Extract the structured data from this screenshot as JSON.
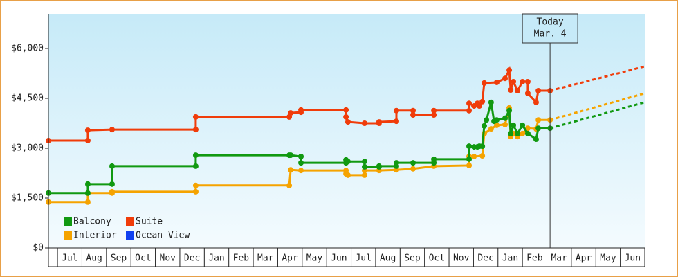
{
  "chart_data": {
    "type": "line",
    "xlim": [
      -0.37,
      24
    ],
    "ylim": [
      0,
      7000
    ],
    "xticks": [
      {
        "value": 0.5,
        "label": "Jul"
      },
      {
        "value": 1.5,
        "label": "Aug"
      },
      {
        "value": 2.5,
        "label": "Sep"
      },
      {
        "value": 3.5,
        "label": "Oct"
      },
      {
        "value": 4.5,
        "label": "Nov"
      },
      {
        "value": 5.5,
        "label": "Dec"
      },
      {
        "value": 6.5,
        "label": "Jan"
      },
      {
        "value": 7.5,
        "label": "Feb"
      },
      {
        "value": 8.5,
        "label": "Mar"
      },
      {
        "value": 9.5,
        "label": "Apr"
      },
      {
        "value": 10.5,
        "label": "May"
      },
      {
        "value": 11.5,
        "label": "Jun"
      },
      {
        "value": 12.5,
        "label": "Jul"
      },
      {
        "value": 13.5,
        "label": "Aug"
      },
      {
        "value": 14.5,
        "label": "Sep"
      },
      {
        "value": 15.5,
        "label": "Oct"
      },
      {
        "value": 16.5,
        "label": "Nov"
      },
      {
        "value": 17.5,
        "label": "Dec"
      },
      {
        "value": 18.5,
        "label": "Jan"
      },
      {
        "value": 19.5,
        "label": "Feb"
      },
      {
        "value": 20.5,
        "label": "Mar"
      },
      {
        "value": 21.5,
        "label": "Apr"
      },
      {
        "value": 22.5,
        "label": "May"
      },
      {
        "value": 23.5,
        "label": "Jun"
      }
    ],
    "yticks": [
      {
        "value": 0,
        "label": "$0"
      },
      {
        "value": 1500,
        "label": "$1,500"
      },
      {
        "value": 3000,
        "label": "$3,000"
      },
      {
        "value": 4500,
        "label": "$4,500"
      },
      {
        "value": 6000,
        "label": "$6,000"
      }
    ],
    "today": {
      "x": 20.13,
      "label": [
        "Today",
        "Mar. 4"
      ]
    },
    "legend": "lower-left",
    "series": [
      {
        "name": "Interior",
        "color": "#f5a300",
        "x": [
          -0.37,
          1.24,
          1.24,
          2.23,
          2.23,
          5.65,
          5.65,
          9.47,
          9.53,
          9.95,
          11.79,
          11.79,
          11.87,
          12.55,
          12.55,
          13.14,
          13.85,
          14.53,
          15.38,
          16.82,
          16.82,
          17.02,
          17.36,
          17.44,
          17.72,
          17.95,
          18.29,
          18.46,
          18.52,
          18.63,
          18.8,
          19.0,
          19.22,
          19.56,
          19.65,
          20.13
        ],
        "values": [
          1380,
          1380,
          1650,
          1650,
          1690,
          1690,
          1880,
          1880,
          2350,
          2330,
          2330,
          2230,
          2190,
          2190,
          2330,
          2330,
          2350,
          2380,
          2460,
          2480,
          2750,
          2750,
          2770,
          3440,
          3580,
          3690,
          3710,
          4210,
          3350,
          3440,
          3350,
          3440,
          3600,
          3580,
          3850,
          3850
        ],
        "forecast": 4650
      },
      {
        "name": "Balcony",
        "color": "#119911",
        "x": [
          -0.37,
          1.24,
          1.24,
          2.23,
          2.23,
          5.65,
          5.65,
          9.47,
          9.53,
          9.95,
          9.95,
          11.79,
          11.79,
          11.87,
          12.55,
          12.55,
          13.14,
          13.14,
          13.85,
          13.85,
          14.53,
          15.38,
          15.38,
          16.82,
          16.82,
          17.02,
          17.16,
          17.24,
          17.36,
          17.44,
          17.53,
          17.72,
          17.84,
          17.95,
          18.29,
          18.46,
          18.52,
          18.63,
          18.8,
          19.0,
          19.22,
          19.56,
          19.65,
          20.13
        ],
        "values": [
          1650,
          1650,
          1920,
          1920,
          2460,
          2460,
          2790,
          2790,
          2790,
          2750,
          2560,
          2560,
          2650,
          2600,
          2600,
          2440,
          2440,
          2460,
          2460,
          2560,
          2560,
          2560,
          2670,
          2670,
          3060,
          3040,
          3040,
          3060,
          3060,
          3670,
          3850,
          4380,
          3810,
          3850,
          3900,
          4130,
          3440,
          3690,
          3440,
          3690,
          3440,
          3270,
          3600,
          3600
        ],
        "forecast": 4380
      },
      {
        "name": "Suite",
        "color": "#f03c0a",
        "x": [
          -0.37,
          1.24,
          1.24,
          2.23,
          5.65,
          5.65,
          9.47,
          9.53,
          9.95,
          9.95,
          11.79,
          11.79,
          11.87,
          12.55,
          13.14,
          13.14,
          13.85,
          13.85,
          14.53,
          14.53,
          15.38,
          15.38,
          16.82,
          16.82,
          17.02,
          17.16,
          17.24,
          17.36,
          17.44,
          17.95,
          18.29,
          18.46,
          18.52,
          18.63,
          18.8,
          19.0,
          19.22,
          19.22,
          19.56,
          19.65,
          20.13
        ],
        "values": [
          3230,
          3230,
          3540,
          3560,
          3560,
          3940,
          3940,
          4060,
          4080,
          4150,
          4150,
          3940,
          3790,
          3750,
          3750,
          3790,
          3810,
          4130,
          4130,
          4000,
          4000,
          4130,
          4130,
          4350,
          4270,
          4350,
          4270,
          4400,
          4960,
          4980,
          5100,
          5350,
          4750,
          5000,
          4730,
          5000,
          5000,
          4650,
          4380,
          4730,
          4730
        ],
        "forecast": 5460
      },
      {
        "name": "Ocean View",
        "color": "#1040f0",
        "x": [],
        "values": []
      }
    ]
  }
}
